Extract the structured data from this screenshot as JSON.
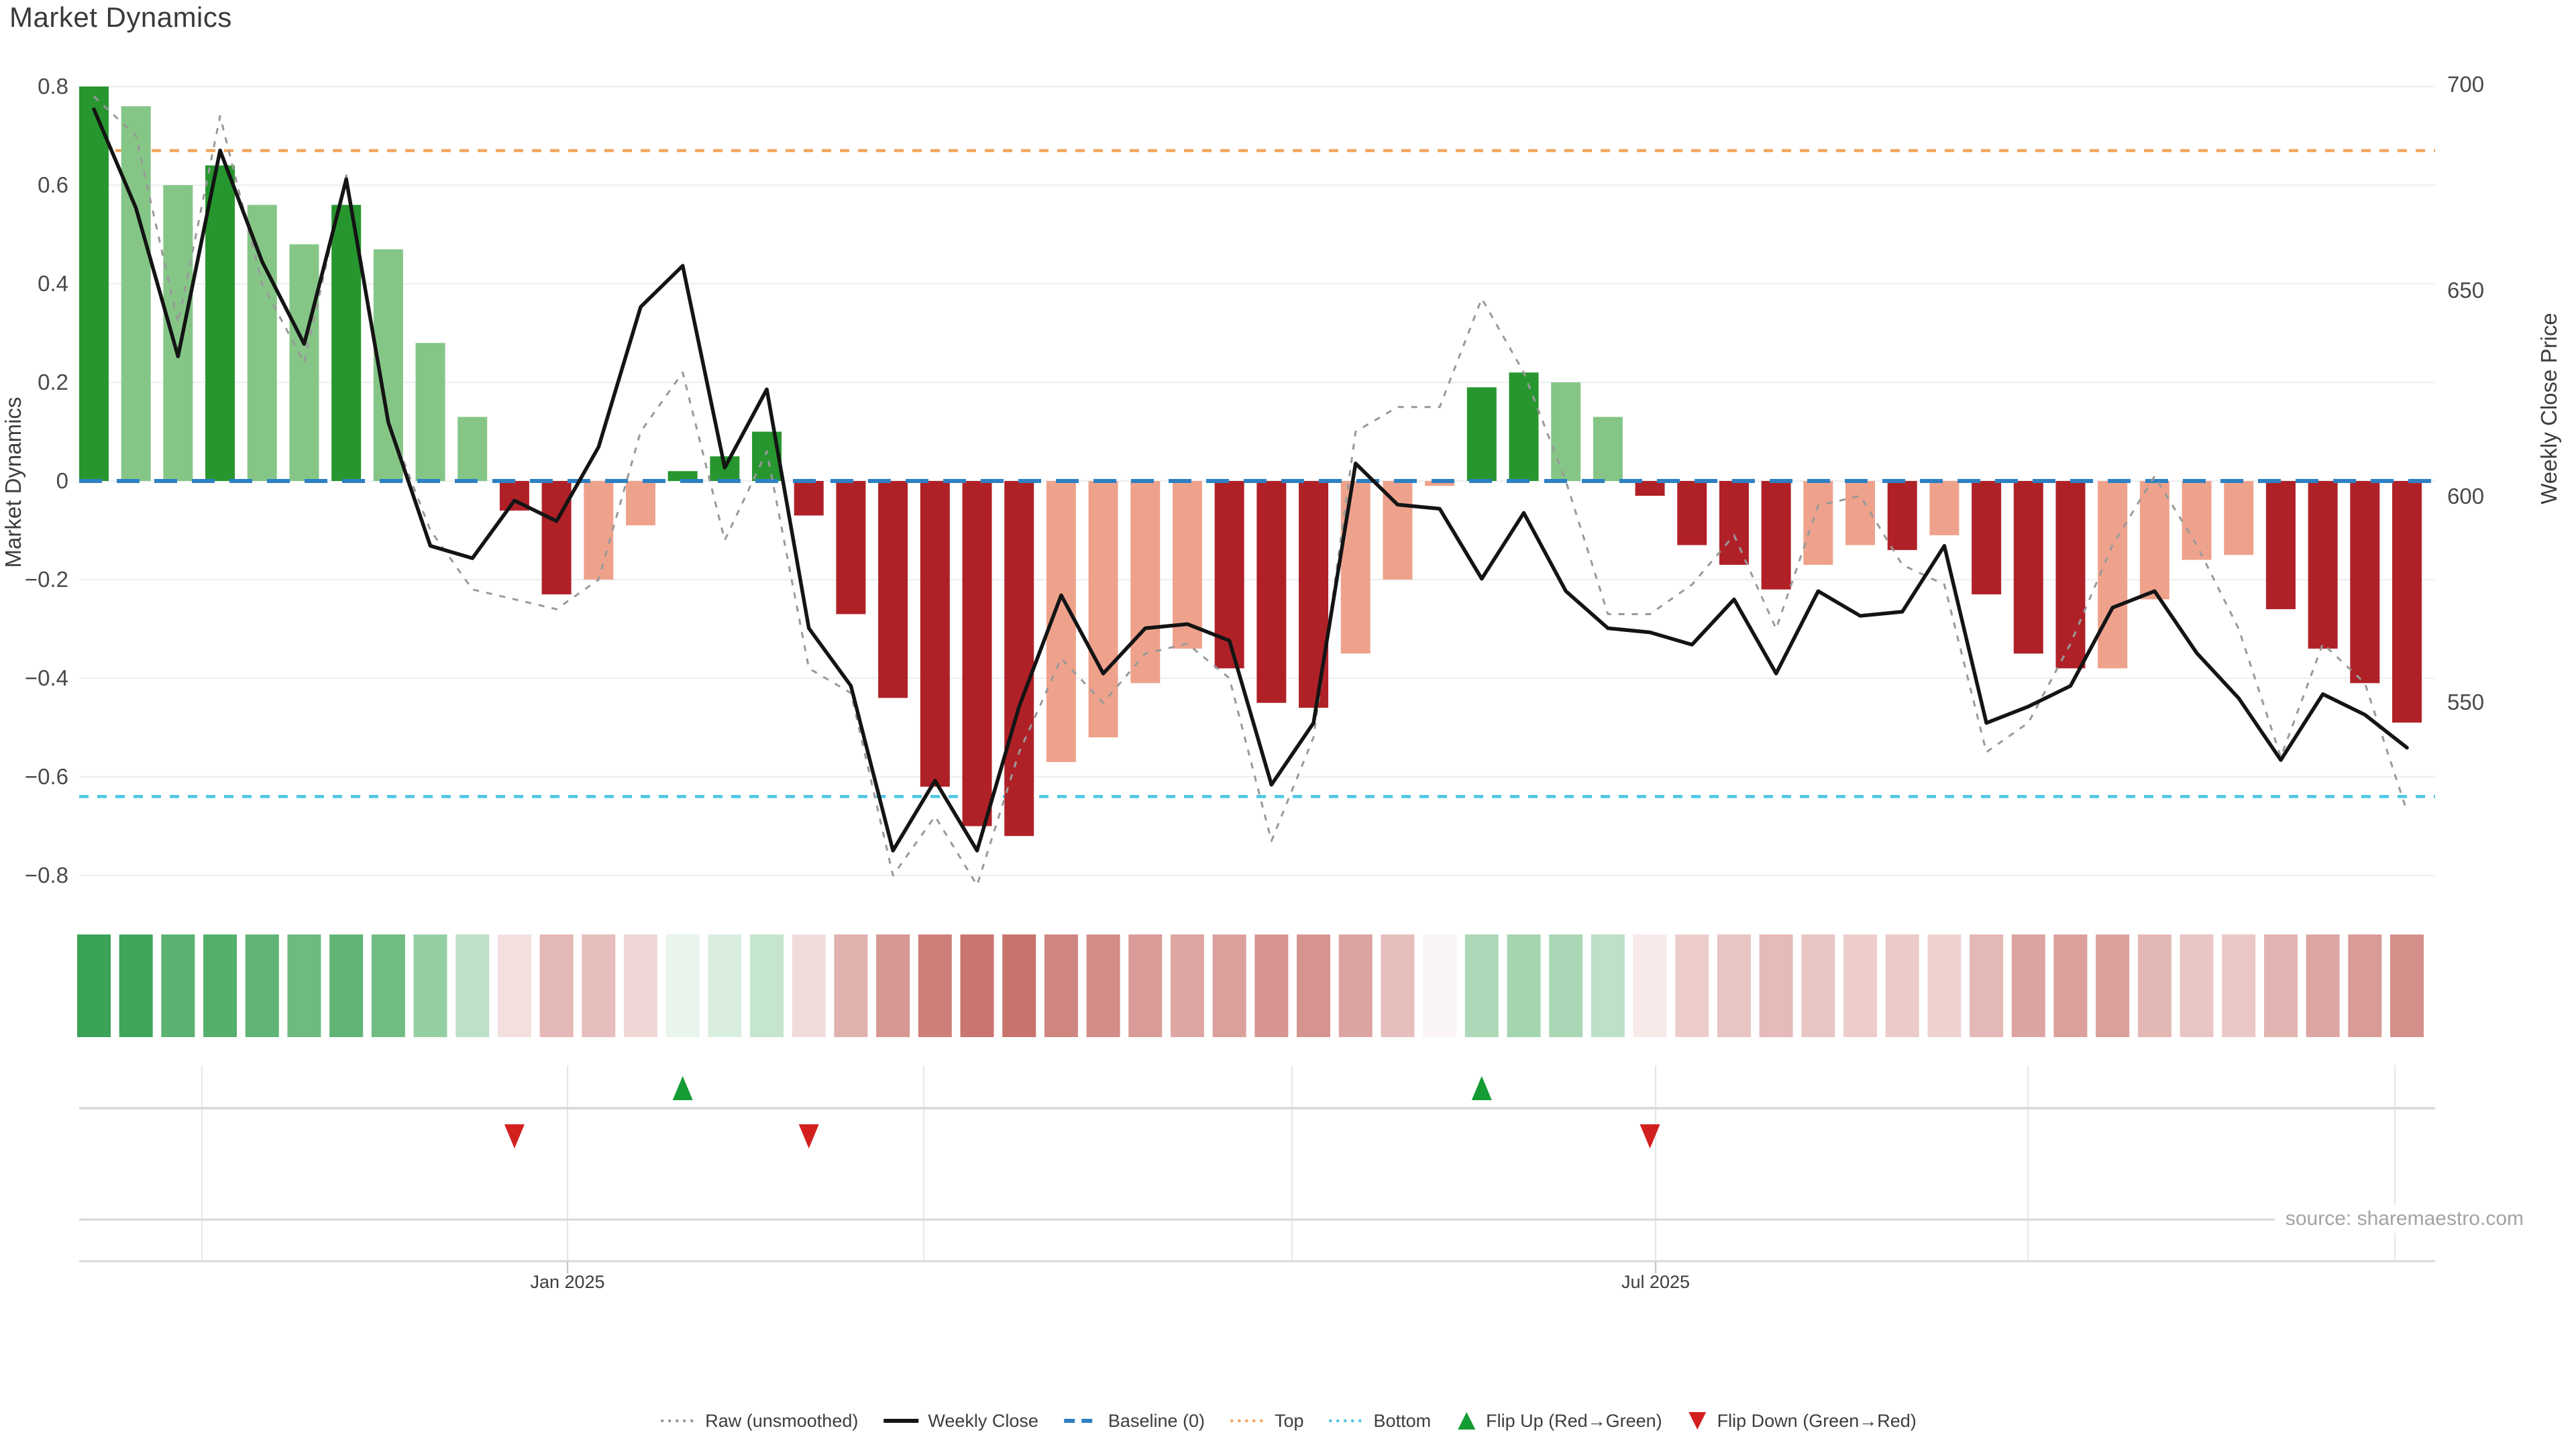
{
  "title": "Market Dynamics",
  "source_note": "source: sharemaestro.com",
  "axes": {
    "left_title": "Market Dynamics",
    "right_title": "Weekly Close Price",
    "left_ticks": [
      0.8,
      0.6,
      0.4,
      0.2,
      0,
      -0.2,
      -0.4,
      -0.6,
      -0.8
    ],
    "right_ticks": [
      700,
      650,
      600,
      550
    ],
    "x_tick_labels": [
      "Jan 2025",
      "Jul 2025"
    ],
    "left_range": [
      -0.8,
      0.8
    ],
    "right_ticks_range": [
      550,
      700
    ]
  },
  "legend": [
    {
      "label": "Raw (unsmoothed)",
      "swatch": "dotted-line",
      "color": "#999999"
    },
    {
      "label": "Weekly Close",
      "swatch": "solid-line",
      "color": "#141414"
    },
    {
      "label": "Baseline (0)",
      "swatch": "dashed-line",
      "color": "#2d80c3"
    },
    {
      "label": "Top",
      "swatch": "dotted-line",
      "color": "#f3a55c"
    },
    {
      "label": "Bottom",
      "swatch": "dotted-line",
      "color": "#4cc5e2"
    },
    {
      "label": "Flip Up (Red→Green)",
      "swatch": "triangle-up",
      "color": "#149b34"
    },
    {
      "label": "Flip Down (Green→Red)",
      "swatch": "triangle-down",
      "color": "#d2201f"
    }
  ],
  "colors": {
    "bar_green_dark": "#27962f",
    "bar_green_light": "#85c687",
    "bar_red_dark": "#b02127",
    "bar_red_light": "#eea28c",
    "close_line": "#141414",
    "raw_line": "#999999",
    "baseline": "#2d80c3",
    "top_line": "#f3a55c",
    "bottom_line": "#4cc5e2",
    "flip_up": "#149b34",
    "flip_down": "#d2201f",
    "heat_green_max": "#3aa355",
    "heat_red_max": "#c66a64",
    "gridline": "#eef0f2",
    "vgridline": "#e4e7ea",
    "separator": "#d8d8d8",
    "tick_mark": "#c9c9c9"
  },
  "chart_data": {
    "type": "combo-bar-line-heatmap",
    "weeks": 56,
    "note_indices": "arrays are weekly, 0-based; dynamics on left axis, weekly_close on right axis; raw in left-axis units",
    "thresholds": {
      "baseline": 0,
      "top": 0.67,
      "bottom": -0.64
    },
    "dynamics": [
      0.8,
      0.76,
      0.6,
      0.64,
      0.56,
      0.48,
      0.56,
      0.47,
      0.28,
      0.13,
      -0.06,
      -0.23,
      -0.2,
      -0.09,
      0.02,
      0.05,
      0.1,
      -0.07,
      -0.27,
      -0.44,
      -0.62,
      -0.7,
      -0.72,
      -0.57,
      -0.52,
      -0.41,
      -0.34,
      -0.38,
      -0.45,
      -0.46,
      -0.35,
      -0.2,
      -0.01,
      0.19,
      0.22,
      0.2,
      0.13,
      -0.03,
      -0.13,
      -0.17,
      -0.22,
      -0.17,
      -0.13,
      -0.14,
      -0.11,
      -0.23,
      -0.35,
      -0.38,
      -0.38,
      -0.24,
      -0.16,
      -0.15,
      -0.26,
      -0.34,
      -0.41,
      -0.49
    ],
    "bar_shade": [
      "D",
      "L",
      "L",
      "D",
      "L",
      "L",
      "D",
      "L",
      "L",
      "L",
      "D",
      "D",
      "L",
      "L",
      "D",
      "D",
      "D",
      "D",
      "D",
      "D",
      "D",
      "D",
      "D",
      "L",
      "L",
      "L",
      "L",
      "D",
      "D",
      "D",
      "L",
      "L",
      "L",
      "D",
      "D",
      "L",
      "L",
      "D",
      "D",
      "D",
      "D",
      "L",
      "L",
      "D",
      "L",
      "D",
      "D",
      "D",
      "L",
      "L",
      "L",
      "L",
      "D",
      "D",
      "D",
      "D"
    ],
    "weekly_close": [
      694,
      670,
      634,
      684,
      657,
      637,
      677,
      618,
      588,
      585,
      599,
      594,
      612,
      646,
      656,
      607,
      626,
      568,
      554,
      514,
      531,
      514,
      549,
      576,
      557,
      568,
      569,
      565,
      530,
      545,
      608,
      598,
      597,
      580,
      596,
      577,
      568,
      567,
      564,
      575,
      557,
      577,
      571,
      572,
      588,
      545,
      549,
      554,
      573,
      577,
      562,
      551,
      536,
      552,
      547,
      539
    ],
    "raw": [
      0.78,
      0.7,
      0.32,
      0.74,
      0.4,
      0.24,
      0.62,
      0.12,
      -0.1,
      -0.22,
      -0.24,
      -0.26,
      -0.2,
      0.1,
      0.22,
      -0.12,
      0.06,
      -0.38,
      -0.43,
      -0.8,
      -0.68,
      -0.82,
      -0.55,
      -0.36,
      -0.45,
      -0.35,
      -0.33,
      -0.4,
      -0.73,
      -0.52,
      0.1,
      0.15,
      0.15,
      0.37,
      0.22,
      0.0,
      -0.27,
      -0.27,
      -0.21,
      -0.11,
      -0.3,
      -0.05,
      -0.03,
      -0.17,
      -0.21,
      -0.55,
      -0.49,
      -0.33,
      -0.13,
      0.01,
      -0.13,
      -0.3,
      -0.56,
      -0.33,
      -0.41,
      -0.67
    ],
    "flips": [
      {
        "index": 10,
        "dir": "down"
      },
      {
        "index": 14,
        "dir": "up"
      },
      {
        "index": 17,
        "dir": "down"
      },
      {
        "index": 33,
        "dir": "up"
      },
      {
        "index": 37,
        "dir": "down"
      }
    ]
  }
}
